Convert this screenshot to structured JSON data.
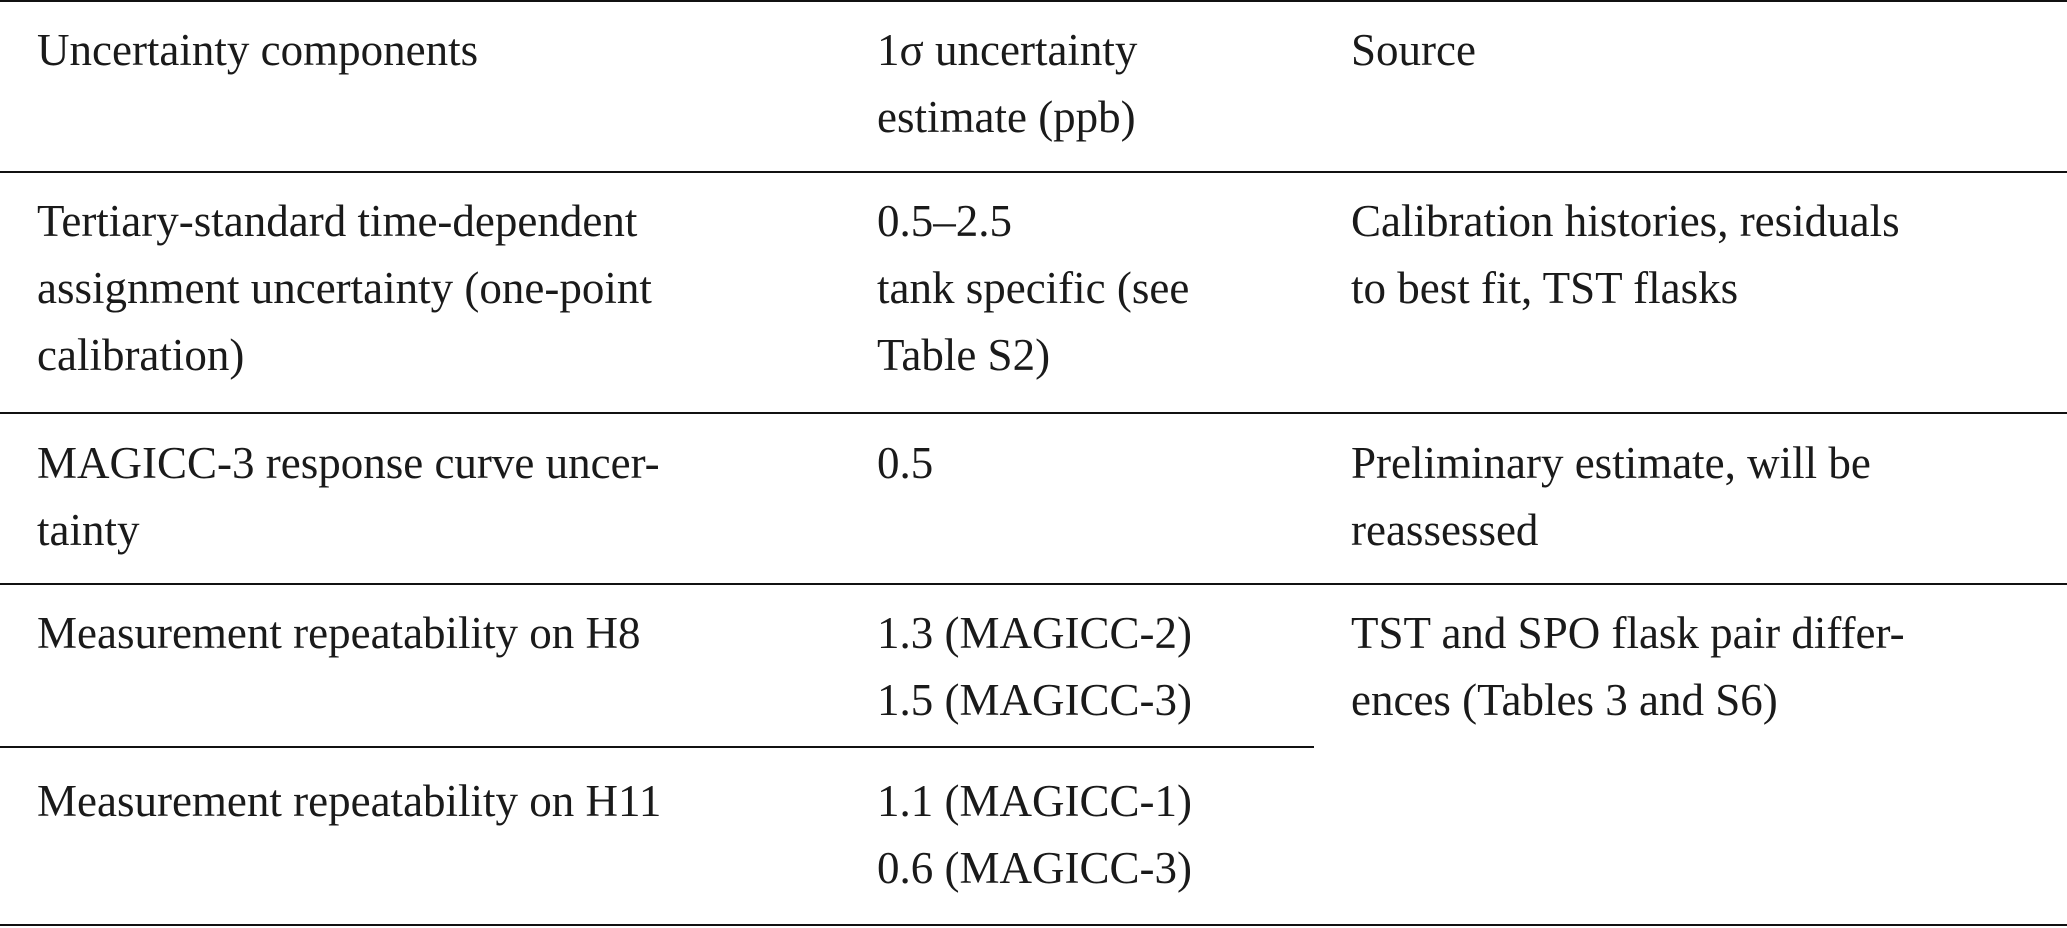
{
  "table": {
    "header": [
      {
        "lines": [
          "Uncertainty components"
        ]
      },
      {
        "lines": [
          "1σ uncertainty",
          "estimate (ppb)"
        ]
      },
      {
        "lines": [
          "Source"
        ]
      }
    ],
    "rows": [
      [
        {
          "lines": [
            "Tertiary-standard time-dependent",
            "assignment uncertainty (one-point",
            "calibration)"
          ]
        },
        {
          "lines": [
            "0.5–2.5",
            "tank specific (see",
            "Table S2)"
          ]
        },
        {
          "lines": [
            "Calibration histories, residuals",
            "to best fit, TST flasks"
          ]
        }
      ],
      [
        {
          "lines": [
            "MAGICC-3 response curve uncer-",
            "tainty"
          ]
        },
        {
          "lines": [
            "0.5"
          ]
        },
        {
          "lines": [
            "Preliminary estimate, will be",
            "reassessed"
          ]
        }
      ],
      [
        {
          "lines": [
            "Measurement repeatability on H8"
          ]
        },
        {
          "lines": [
            "1.3 (MAGICC-2)",
            "1.5 (MAGICC-3)"
          ]
        },
        {
          "lines": [
            "TST and SPO flask pair differ-",
            "ences (Tables 3 and S6)"
          ]
        }
      ],
      [
        {
          "lines": [
            "Measurement repeatability on H11"
          ]
        },
        {
          "lines": [
            "1.1 (MAGICC-1)",
            "0.6 (MAGICC-3)"
          ]
        }
      ]
    ]
  }
}
